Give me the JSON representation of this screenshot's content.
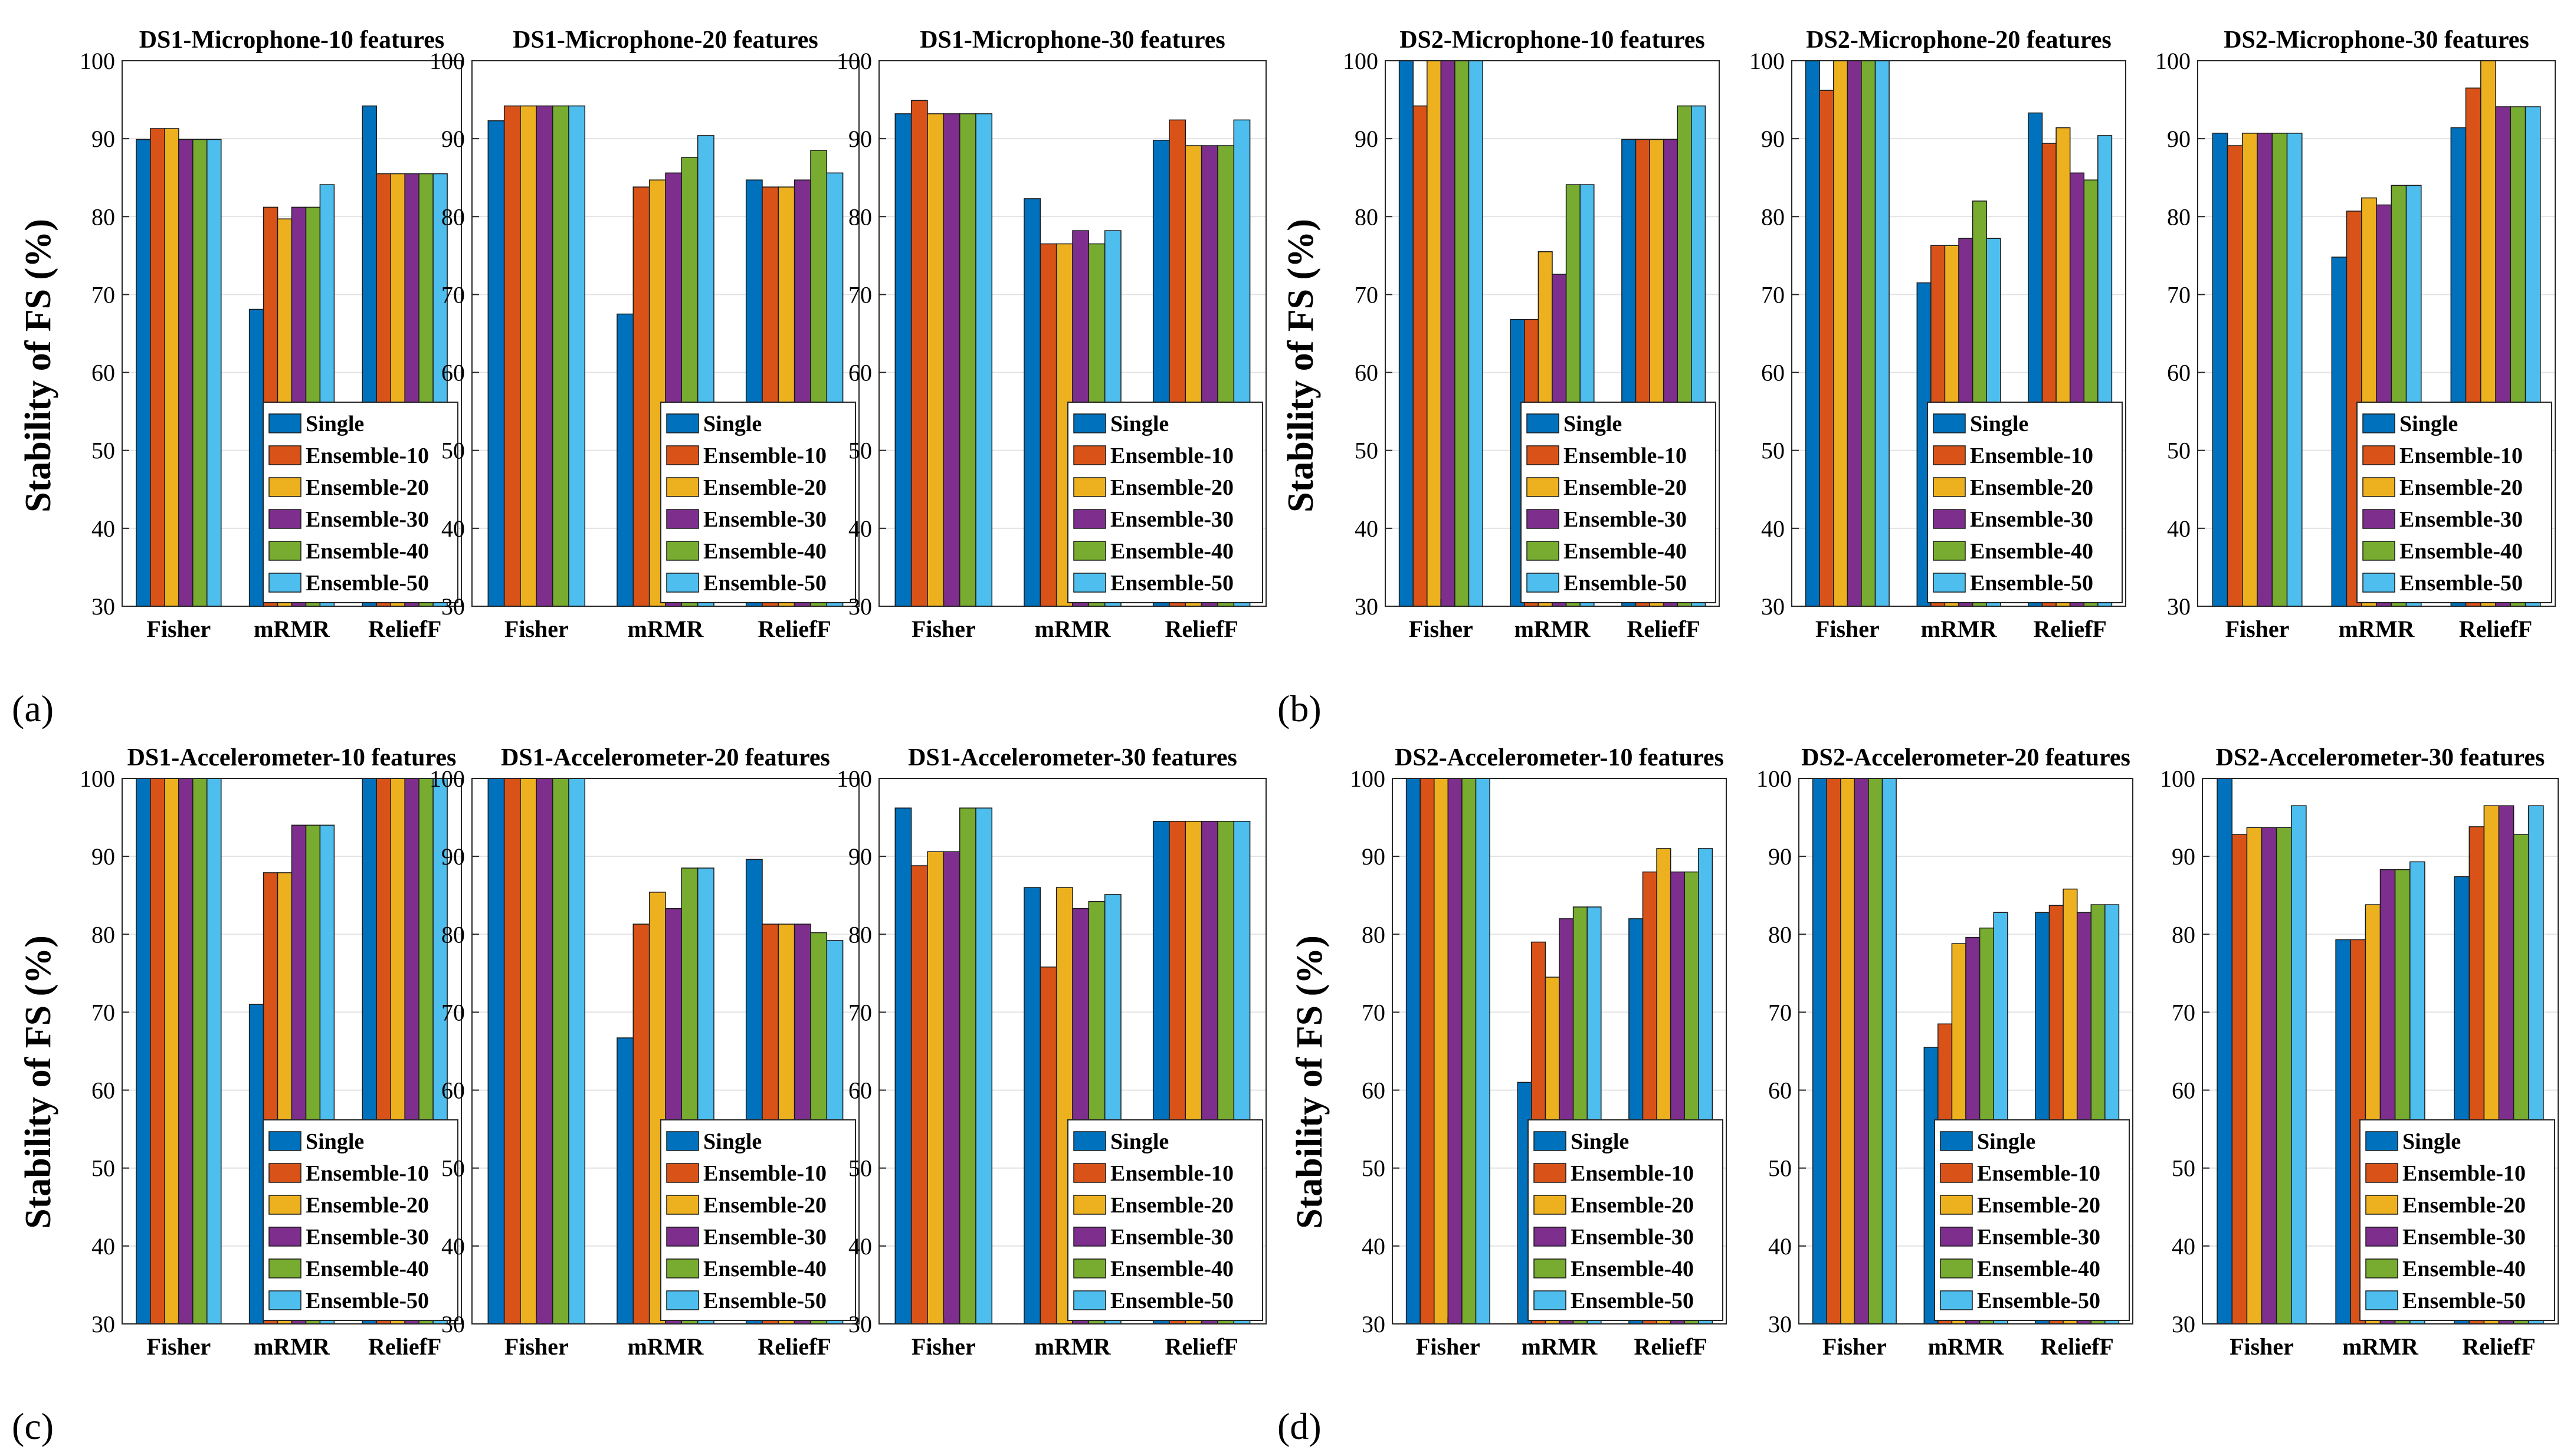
{
  "figure": {
    "ylabel": "Stability of FS (%)",
    "categories": [
      "Fisher",
      "mRMR",
      "ReliefF"
    ],
    "series_names": [
      "Single",
      "Ensemble-10",
      "Ensemble-20",
      "Ensemble-30",
      "Ensemble-40",
      "Ensemble-50"
    ],
    "series_colors": [
      "#0072BD",
      "#D95319",
      "#EDB120",
      "#7E2F8E",
      "#77AC30",
      "#4DBEEE"
    ],
    "yticks": [
      30,
      40,
      50,
      60,
      70,
      80,
      90,
      100
    ],
    "panel_labels": [
      "(a)",
      "(b)",
      "(c)",
      "(d)"
    ]
  },
  "chart_data": [
    {
      "type": "bar",
      "panel": "(a)",
      "title": "DS1-Microphone-10 features",
      "xlabel": "",
      "ylabel": "Stability of FS (%)",
      "ylim": [
        30,
        100
      ],
      "categories": [
        "Fisher",
        "mRMR",
        "ReliefF"
      ],
      "legend": "bottom-right",
      "series": [
        {
          "name": "Single",
          "values": [
            89.9,
            68.1,
            94.2
          ]
        },
        {
          "name": "Ensemble-10",
          "values": [
            91.3,
            81.2,
            85.5
          ]
        },
        {
          "name": "Ensemble-20",
          "values": [
            91.3,
            79.7,
            85.5
          ]
        },
        {
          "name": "Ensemble-30",
          "values": [
            89.9,
            81.2,
            85.5
          ]
        },
        {
          "name": "Ensemble-40",
          "values": [
            89.9,
            81.2,
            85.5
          ]
        },
        {
          "name": "Ensemble-50",
          "values": [
            89.9,
            84.1,
            85.5
          ]
        }
      ]
    },
    {
      "type": "bar",
      "panel": "(a)",
      "title": "DS1-Microphone-20 features",
      "xlabel": "",
      "ylabel": "Stability of FS (%)",
      "ylim": [
        30,
        100
      ],
      "categories": [
        "Fisher",
        "mRMR",
        "ReliefF"
      ],
      "legend": "bottom-right",
      "series": [
        {
          "name": "Single",
          "values": [
            92.3,
            67.5,
            84.7
          ]
        },
        {
          "name": "Ensemble-10",
          "values": [
            94.2,
            83.8,
            83.8
          ]
        },
        {
          "name": "Ensemble-20",
          "values": [
            94.2,
            84.7,
            83.8
          ]
        },
        {
          "name": "Ensemble-30",
          "values": [
            94.2,
            85.6,
            84.7
          ]
        },
        {
          "name": "Ensemble-40",
          "values": [
            94.2,
            87.6,
            88.5
          ]
        },
        {
          "name": "Ensemble-50",
          "values": [
            94.2,
            90.4,
            85.6
          ]
        }
      ]
    },
    {
      "type": "bar",
      "panel": "(a)",
      "title": "DS1-Microphone-30 features",
      "xlabel": "",
      "ylabel": "Stability of FS (%)",
      "ylim": [
        30,
        100
      ],
      "categories": [
        "Fisher",
        "mRMR",
        "ReliefF"
      ],
      "legend": "bottom-right",
      "series": [
        {
          "name": "Single",
          "values": [
            93.2,
            82.3,
            89.8
          ]
        },
        {
          "name": "Ensemble-10",
          "values": [
            94.9,
            76.5,
            92.4
          ]
        },
        {
          "name": "Ensemble-20",
          "values": [
            93.2,
            76.5,
            89.1
          ]
        },
        {
          "name": "Ensemble-30",
          "values": [
            93.2,
            78.2,
            89.1
          ]
        },
        {
          "name": "Ensemble-40",
          "values": [
            93.2,
            76.5,
            89.1
          ]
        },
        {
          "name": "Ensemble-50",
          "values": [
            93.2,
            78.2,
            92.4
          ]
        }
      ]
    },
    {
      "type": "bar",
      "panel": "(b)",
      "title": "DS2-Microphone-10 features",
      "xlabel": "",
      "ylabel": "Stability of FS (%)",
      "ylim": [
        30,
        100
      ],
      "categories": [
        "Fisher",
        "mRMR",
        "ReliefF"
      ],
      "legend": "bottom-right",
      "series": [
        {
          "name": "Single",
          "values": [
            100,
            66.8,
            89.9
          ]
        },
        {
          "name": "Ensemble-10",
          "values": [
            94.2,
            66.8,
            89.9
          ]
        },
        {
          "name": "Ensemble-20",
          "values": [
            100,
            75.5,
            89.9
          ]
        },
        {
          "name": "Ensemble-30",
          "values": [
            100,
            72.6,
            89.9
          ]
        },
        {
          "name": "Ensemble-40",
          "values": [
            100,
            84.1,
            94.2
          ]
        },
        {
          "name": "Ensemble-50",
          "values": [
            100,
            84.1,
            94.2
          ]
        }
      ]
    },
    {
      "type": "bar",
      "panel": "(b)",
      "title": "DS2-Microphone-20 features",
      "xlabel": "",
      "ylabel": "Stability of FS (%)",
      "ylim": [
        30,
        100
      ],
      "categories": [
        "Fisher",
        "mRMR",
        "ReliefF"
      ],
      "legend": "bottom-right",
      "series": [
        {
          "name": "Single",
          "values": [
            100,
            71.5,
            93.3
          ]
        },
        {
          "name": "Ensemble-10",
          "values": [
            96.2,
            76.3,
            89.4
          ]
        },
        {
          "name": "Ensemble-20",
          "values": [
            100,
            76.3,
            91.4
          ]
        },
        {
          "name": "Ensemble-30",
          "values": [
            100,
            77.2,
            85.6
          ]
        },
        {
          "name": "Ensemble-40",
          "values": [
            100,
            82.0,
            84.7
          ]
        },
        {
          "name": "Ensemble-50",
          "values": [
            100,
            77.2,
            90.4
          ]
        }
      ]
    },
    {
      "type": "bar",
      "panel": "(b)",
      "title": "DS2-Microphone-30 features",
      "xlabel": "",
      "ylabel": "Stability of FS (%)",
      "ylim": [
        30,
        100
      ],
      "categories": [
        "Fisher",
        "mRMR",
        "ReliefF"
      ],
      "legend": "bottom-right",
      "series": [
        {
          "name": "Single",
          "values": [
            90.7,
            74.8,
            91.4
          ]
        },
        {
          "name": "Ensemble-10",
          "values": [
            89.1,
            80.7,
            96.5
          ]
        },
        {
          "name": "Ensemble-20",
          "values": [
            90.7,
            82.4,
            100
          ]
        },
        {
          "name": "Ensemble-30",
          "values": [
            90.7,
            81.5,
            94.1
          ]
        },
        {
          "name": "Ensemble-40",
          "values": [
            90.7,
            84.0,
            94.1
          ]
        },
        {
          "name": "Ensemble-50",
          "values": [
            90.7,
            84.0,
            94.1
          ]
        }
      ]
    },
    {
      "type": "bar",
      "panel": "(c)",
      "title": "DS1-Accelerometer-10 features",
      "xlabel": "",
      "ylabel": "Stability of FS (%)",
      "ylim": [
        30,
        100
      ],
      "categories": [
        "Fisher",
        "mRMR",
        "ReliefF"
      ],
      "legend": "bottom-right",
      "series": [
        {
          "name": "Single",
          "values": [
            100,
            71.0,
            100
          ]
        },
        {
          "name": "Ensemble-10",
          "values": [
            100,
            87.9,
            100
          ]
        },
        {
          "name": "Ensemble-20",
          "values": [
            100,
            87.9,
            100
          ]
        },
        {
          "name": "Ensemble-30",
          "values": [
            100,
            94.0,
            100
          ]
        },
        {
          "name": "Ensemble-40",
          "values": [
            100,
            94.0,
            100
          ]
        },
        {
          "name": "Ensemble-50",
          "values": [
            100,
            94.0,
            100
          ]
        }
      ]
    },
    {
      "type": "bar",
      "panel": "(c)",
      "title": "DS1-Accelerometer-20 features",
      "xlabel": "",
      "ylabel": "Stability of FS (%)",
      "ylim": [
        30,
        100
      ],
      "categories": [
        "Fisher",
        "mRMR",
        "ReliefF"
      ],
      "legend": "bottom-right",
      "series": [
        {
          "name": "Single",
          "values": [
            100,
            66.7,
            89.6
          ]
        },
        {
          "name": "Ensemble-10",
          "values": [
            100,
            81.3,
            81.3
          ]
        },
        {
          "name": "Ensemble-20",
          "values": [
            100,
            85.4,
            81.3
          ]
        },
        {
          "name": "Ensemble-30",
          "values": [
            100,
            83.3,
            81.3
          ]
        },
        {
          "name": "Ensemble-40",
          "values": [
            100,
            88.5,
            80.2
          ]
        },
        {
          "name": "Ensemble-50",
          "values": [
            100,
            88.5,
            79.2
          ]
        }
      ]
    },
    {
      "type": "bar",
      "panel": "(c)",
      "title": "DS1-Accelerometer-30 features",
      "xlabel": "",
      "ylabel": "Stability of FS (%)",
      "ylim": [
        30,
        100
      ],
      "categories": [
        "Fisher",
        "mRMR",
        "ReliefF"
      ],
      "legend": "bottom-right",
      "series": [
        {
          "name": "Single",
          "values": [
            96.2,
            86.0,
            94.5
          ]
        },
        {
          "name": "Ensemble-10",
          "values": [
            88.8,
            75.8,
            94.5
          ]
        },
        {
          "name": "Ensemble-20",
          "values": [
            90.6,
            86.0,
            94.5
          ]
        },
        {
          "name": "Ensemble-30",
          "values": [
            90.6,
            83.3,
            94.5
          ]
        },
        {
          "name": "Ensemble-40",
          "values": [
            96.2,
            84.2,
            94.5
          ]
        },
        {
          "name": "Ensemble-50",
          "values": [
            96.2,
            85.1,
            94.5
          ]
        }
      ]
    },
    {
      "type": "bar",
      "panel": "(d)",
      "title": "DS2-Accelerometer-10 features",
      "xlabel": "",
      "ylabel": "Stability of FS (%)",
      "ylim": [
        30,
        100
      ],
      "categories": [
        "Fisher",
        "mRMR",
        "ReliefF"
      ],
      "legend": "bottom-right",
      "series": [
        {
          "name": "Single",
          "values": [
            100,
            61.0,
            82.0
          ]
        },
        {
          "name": "Ensemble-10",
          "values": [
            100,
            79.0,
            88.0
          ]
        },
        {
          "name": "Ensemble-20",
          "values": [
            100,
            74.5,
            91.0
          ]
        },
        {
          "name": "Ensemble-30",
          "values": [
            100,
            82.0,
            88.0
          ]
        },
        {
          "name": "Ensemble-40",
          "values": [
            100,
            83.5,
            88.0
          ]
        },
        {
          "name": "Ensemble-50",
          "values": [
            100,
            83.5,
            91.0
          ]
        }
      ]
    },
    {
      "type": "bar",
      "panel": "(d)",
      "title": "DS2-Accelerometer-20 features",
      "xlabel": "",
      "ylabel": "Stability of FS (%)",
      "ylim": [
        30,
        100
      ],
      "categories": [
        "Fisher",
        "mRMR",
        "ReliefF"
      ],
      "legend": "bottom-right",
      "series": [
        {
          "name": "Single",
          "values": [
            100,
            65.5,
            82.8
          ]
        },
        {
          "name": "Ensemble-10",
          "values": [
            100,
            68.5,
            83.7
          ]
        },
        {
          "name": "Ensemble-20",
          "values": [
            100,
            78.8,
            85.8
          ]
        },
        {
          "name": "Ensemble-30",
          "values": [
            100,
            79.6,
            82.8
          ]
        },
        {
          "name": "Ensemble-40",
          "values": [
            100,
            80.8,
            83.8
          ]
        },
        {
          "name": "Ensemble-50",
          "values": [
            100,
            82.8,
            83.8
          ]
        }
      ]
    },
    {
      "type": "bar",
      "panel": "(d)",
      "title": "DS2-Accelerometer-30 features",
      "xlabel": "",
      "ylabel": "Stability of FS (%)",
      "ylim": [
        30,
        100
      ],
      "categories": [
        "Fisher",
        "mRMR",
        "ReliefF"
      ],
      "legend": "bottom-right",
      "series": [
        {
          "name": "Single",
          "values": [
            100,
            79.3,
            87.4
          ]
        },
        {
          "name": "Ensemble-10",
          "values": [
            92.8,
            79.3,
            93.8
          ]
        },
        {
          "name": "Ensemble-20",
          "values": [
            93.7,
            83.8,
            96.5
          ]
        },
        {
          "name": "Ensemble-30",
          "values": [
            93.7,
            88.3,
            96.5
          ]
        },
        {
          "name": "Ensemble-40",
          "values": [
            93.7,
            88.3,
            92.8
          ]
        },
        {
          "name": "Ensemble-50",
          "values": [
            96.5,
            89.3,
            96.5
          ]
        }
      ]
    }
  ]
}
